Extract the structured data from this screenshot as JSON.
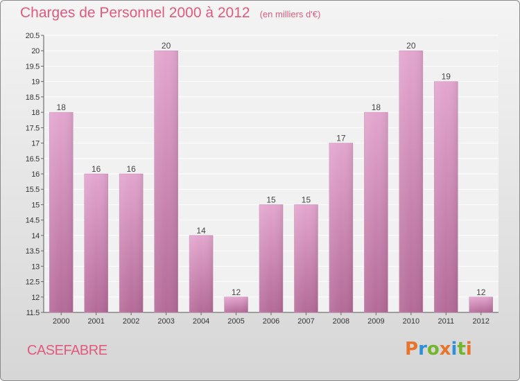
{
  "header": {
    "title": "Charges de Personnel 2000 à 2012",
    "subtitle": "(en milliers d'€)"
  },
  "footer": {
    "commune": "CASEFABRE",
    "logo_text": "Proxiti"
  },
  "colors": {
    "title": "#e05a7e",
    "bar_top": "#e3a6cf",
    "bar_bottom": "#b46a98",
    "logo_letters": [
      "#e8742c",
      "#2f8fd8",
      "#73b62c",
      "#e8742c",
      "#2f8fd8",
      "#73b62c",
      "#e8742c"
    ]
  },
  "chart_data": {
    "type": "bar",
    "categories": [
      "2000",
      "2001",
      "2002",
      "2003",
      "2004",
      "2005",
      "2006",
      "2007",
      "2008",
      "2009",
      "2010",
      "2011",
      "2012"
    ],
    "values": [
      18,
      16,
      16,
      20,
      14,
      12,
      15,
      15,
      17,
      18,
      20,
      19,
      12
    ],
    "data_labels": [
      "18",
      "16",
      "16",
      "20",
      "14",
      "12",
      "15",
      "15",
      "17",
      "18",
      "20",
      "19",
      "12"
    ],
    "y_ticks": [
      "11.5",
      "12",
      "12.5",
      "13",
      "13.5",
      "14",
      "14.5",
      "15",
      "15.5",
      "16",
      "16.5",
      "17",
      "17.5",
      "18",
      "18.5",
      "19",
      "19.5",
      "20",
      "20.5"
    ],
    "ylim": [
      11.5,
      20.5
    ],
    "grid": true,
    "legend": "none"
  }
}
